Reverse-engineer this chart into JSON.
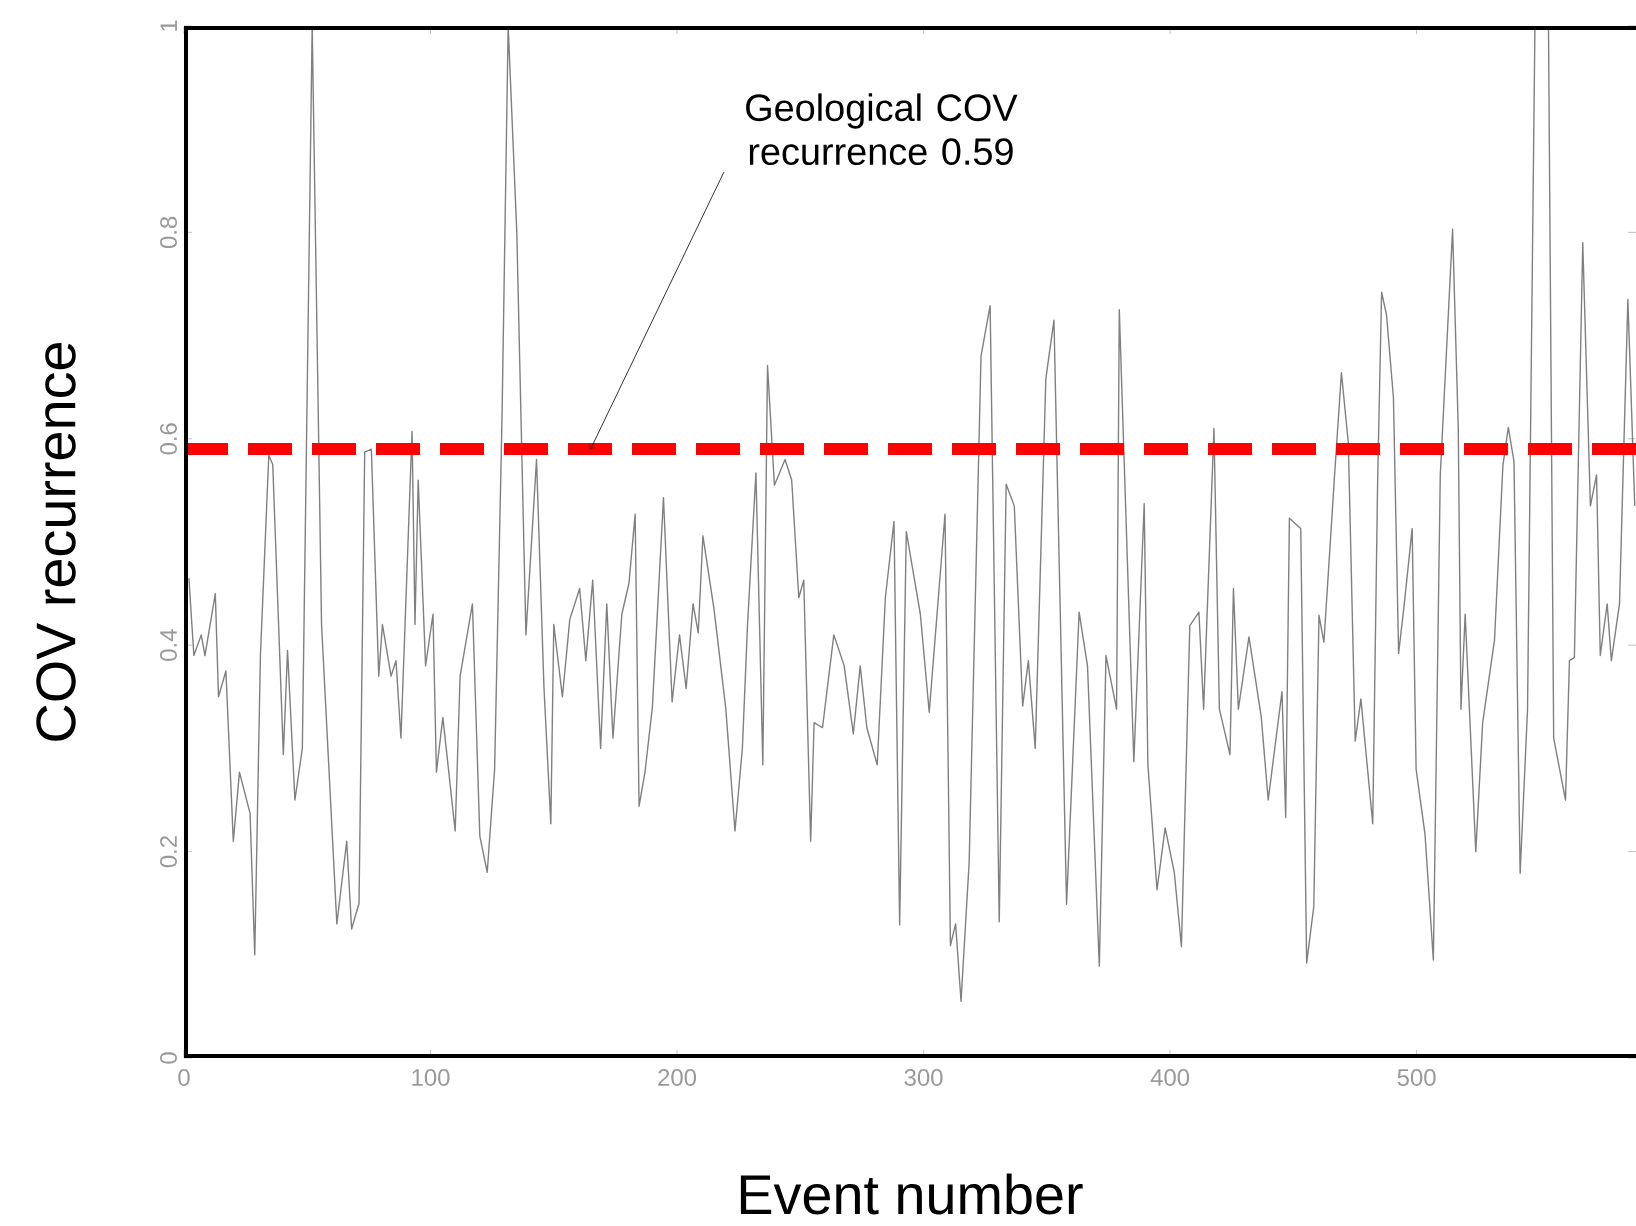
{
  "chart_data": {
    "type": "line",
    "xlabel": "Event number",
    "ylabel": "COV recurrence",
    "xlim": [
      0,
      589
    ],
    "ylim": [
      0,
      1
    ],
    "xticks": [
      0,
      100,
      200,
      300,
      400,
      500
    ],
    "yticks": [
      0,
      0.2,
      0.4,
      0.6,
      0.8,
      1
    ],
    "ref_lines": [
      {
        "axis": "y",
        "value": 0.59,
        "label": "Geological COV recurrence 0.59",
        "color": "#ff0000",
        "line_style": "dashed"
      }
    ],
    "series": [
      {
        "color": "#808080",
        "x": [
          2,
          4,
          7,
          8.5,
          12.7,
          14,
          17,
          20,
          22.5,
          26.8,
          28.7,
          31,
          34.4,
          36,
          40.3,
          42,
          45,
          48,
          52,
          55.8,
          62,
          66,
          68,
          71,
          73.3,
          76,
          79,
          80.5,
          84,
          86,
          88,
          92.5,
          93.7,
          95,
          98,
          101,
          102.4,
          105,
          110,
          112,
          117,
          120,
          123,
          126,
          129,
          131.5,
          135,
          138.7,
          143,
          146,
          148.8,
          150,
          153.5,
          156.5,
          160.5,
          163,
          165.8,
          169,
          171.5,
          174,
          177.6,
          180.5,
          183,
          184.6,
          187,
          190,
          194.5,
          198,
          201,
          203.7,
          206.5,
          208.6,
          210.5,
          215,
          219.8,
          223.5,
          226.5,
          228.6,
          232,
          234.8,
          236.7,
          239.5,
          243.8,
          246.5,
          249.4,
          251.4,
          254.2,
          255.6,
          259,
          263.6,
          267.8,
          271.5,
          274.3,
          277,
          281.2,
          284.5,
          288,
          290.3,
          293,
          298.7,
          302.3,
          308.7,
          310.9,
          313,
          315.2,
          318.5,
          323.3,
          327,
          330.7,
          333.5,
          336.8,
          340.2,
          342.5,
          345.3,
          349.6,
          352.9,
          358,
          363.1,
          366.5,
          371.3,
          374,
          378.3,
          379.4,
          385.3,
          389.5,
          391,
          394.7,
          398,
          401.7,
          404.6,
          408,
          411.7,
          413.6,
          417.8,
          420,
          424.3,
          425.7,
          427.7,
          432,
          437,
          439.8,
          445.4,
          446.9,
          448.4,
          453,
          455.4,
          458.3,
          460.4,
          462.4,
          466.6,
          469.5,
          472.3,
          475.1,
          477.4,
          482.2,
          484.2,
          485.8,
          487.8,
          490.6,
          492.7,
          495,
          498.2,
          499.8,
          503.4,
          506.8,
          509.6,
          514.6,
          516.9,
          518,
          519.7,
          524,
          526.8,
          531.6,
          535,
          537.2,
          539.5,
          542,
          545,
          548,
          553.5,
          555.6,
          560.4,
          562,
          564,
          567.4,
          570.5,
          573,
          574.5,
          577.3,
          579,
          582.3,
          585.7,
          588.5
        ],
        "values": [
          0.465,
          0.39,
          0.41,
          0.39,
          0.45,
          0.35,
          0.375,
          0.21,
          0.277,
          0.237,
          0.1,
          0.39,
          0.584,
          0.575,
          0.294,
          0.395,
          0.25,
          0.3,
          1,
          0.42,
          0.13,
          0.21,
          0.125,
          0.15,
          0.587,
          0.59,
          0.37,
          0.42,
          0.37,
          0.385,
          0.31,
          0.607,
          0.42,
          0.56,
          0.38,
          0.43,
          0.277,
          0.33,
          0.22,
          0.37,
          0.44,
          0.215,
          0.18,
          0.28,
          0.62,
          1,
          0.8,
          0.41,
          0.58,
          0.36,
          0.227,
          0.42,
          0.35,
          0.425,
          0.455,
          0.385,
          0.463,
          0.3,
          0.44,
          0.31,
          0.43,
          0.46,
          0.527,
          0.244,
          0.277,
          0.34,
          0.543,
          0.345,
          0.41,
          0.358,
          0.44,
          0.412,
          0.506,
          0.435,
          0.338,
          0.22,
          0.3,
          0.42,
          0.567,
          0.284,
          0.671,
          0.555,
          0.58,
          0.56,
          0.446,
          0.463,
          0.21,
          0.325,
          0.32,
          0.41,
          0.38,
          0.314,
          0.38,
          0.32,
          0.284,
          0.446,
          0.52,
          0.129,
          0.51,
          0.43,
          0.335,
          0.527,
          0.109,
          0.13,
          0.055,
          0.19,
          0.68,
          0.729,
          0.132,
          0.556,
          0.535,
          0.341,
          0.385,
          0.3,
          0.658,
          0.715,
          0.149,
          0.432,
          0.38,
          0.089,
          0.39,
          0.338,
          0.725,
          0.287,
          0.537,
          0.284,
          0.163,
          0.223,
          0.18,
          0.108,
          0.419,
          0.432,
          0.338,
          0.61,
          0.338,
          0.294,
          0.455,
          0.338,
          0.408,
          0.33,
          0.25,
          0.355,
          0.233,
          0.523,
          0.513,
          0.092,
          0.147,
          0.429,
          0.403,
          0.56,
          0.664,
          0.596,
          0.307,
          0.348,
          0.227,
          0.56,
          0.742,
          0.72,
          0.64,
          0.392,
          0.44,
          0.513,
          0.28,
          0.217,
          0.095,
          0.565,
          0.803,
          0.61,
          0.338,
          0.43,
          0.2,
          0.325,
          0.405,
          0.574,
          0.611,
          0.578,
          0.179,
          0.338,
          1,
          1,
          0.31,
          0.25,
          0.385,
          0.388,
          0.79,
          0.535,
          0.565,
          0.39,
          0.44,
          0.385,
          0.44,
          0.735,
          0.535
        ]
      }
    ]
  }
}
